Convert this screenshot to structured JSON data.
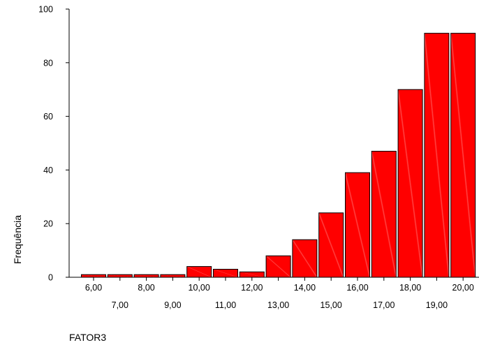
{
  "chart_data": {
    "type": "bar",
    "categories": [
      "6,00",
      "7,00",
      "8,00",
      "9,00",
      "10,00",
      "11,00",
      "12,00",
      "13,00",
      "14,00",
      "15,00",
      "16,00",
      "17,00",
      "18,00",
      "19,00",
      "20,00"
    ],
    "values": [
      1,
      1,
      1,
      1,
      4,
      3,
      2,
      8,
      14,
      24,
      39,
      47,
      70,
      91,
      91
    ],
    "title": "",
    "xlabel": "FATOR3",
    "ylabel": "Frequência",
    "ylim": [
      0,
      100
    ],
    "yticks": [
      "0",
      "20",
      "40",
      "60",
      "80",
      "100"
    ],
    "ytick_values": [
      0,
      20,
      40,
      60,
      80,
      100
    ],
    "grid": false,
    "bar_color": "#ff0000",
    "bar_edge_color": "#000000"
  }
}
